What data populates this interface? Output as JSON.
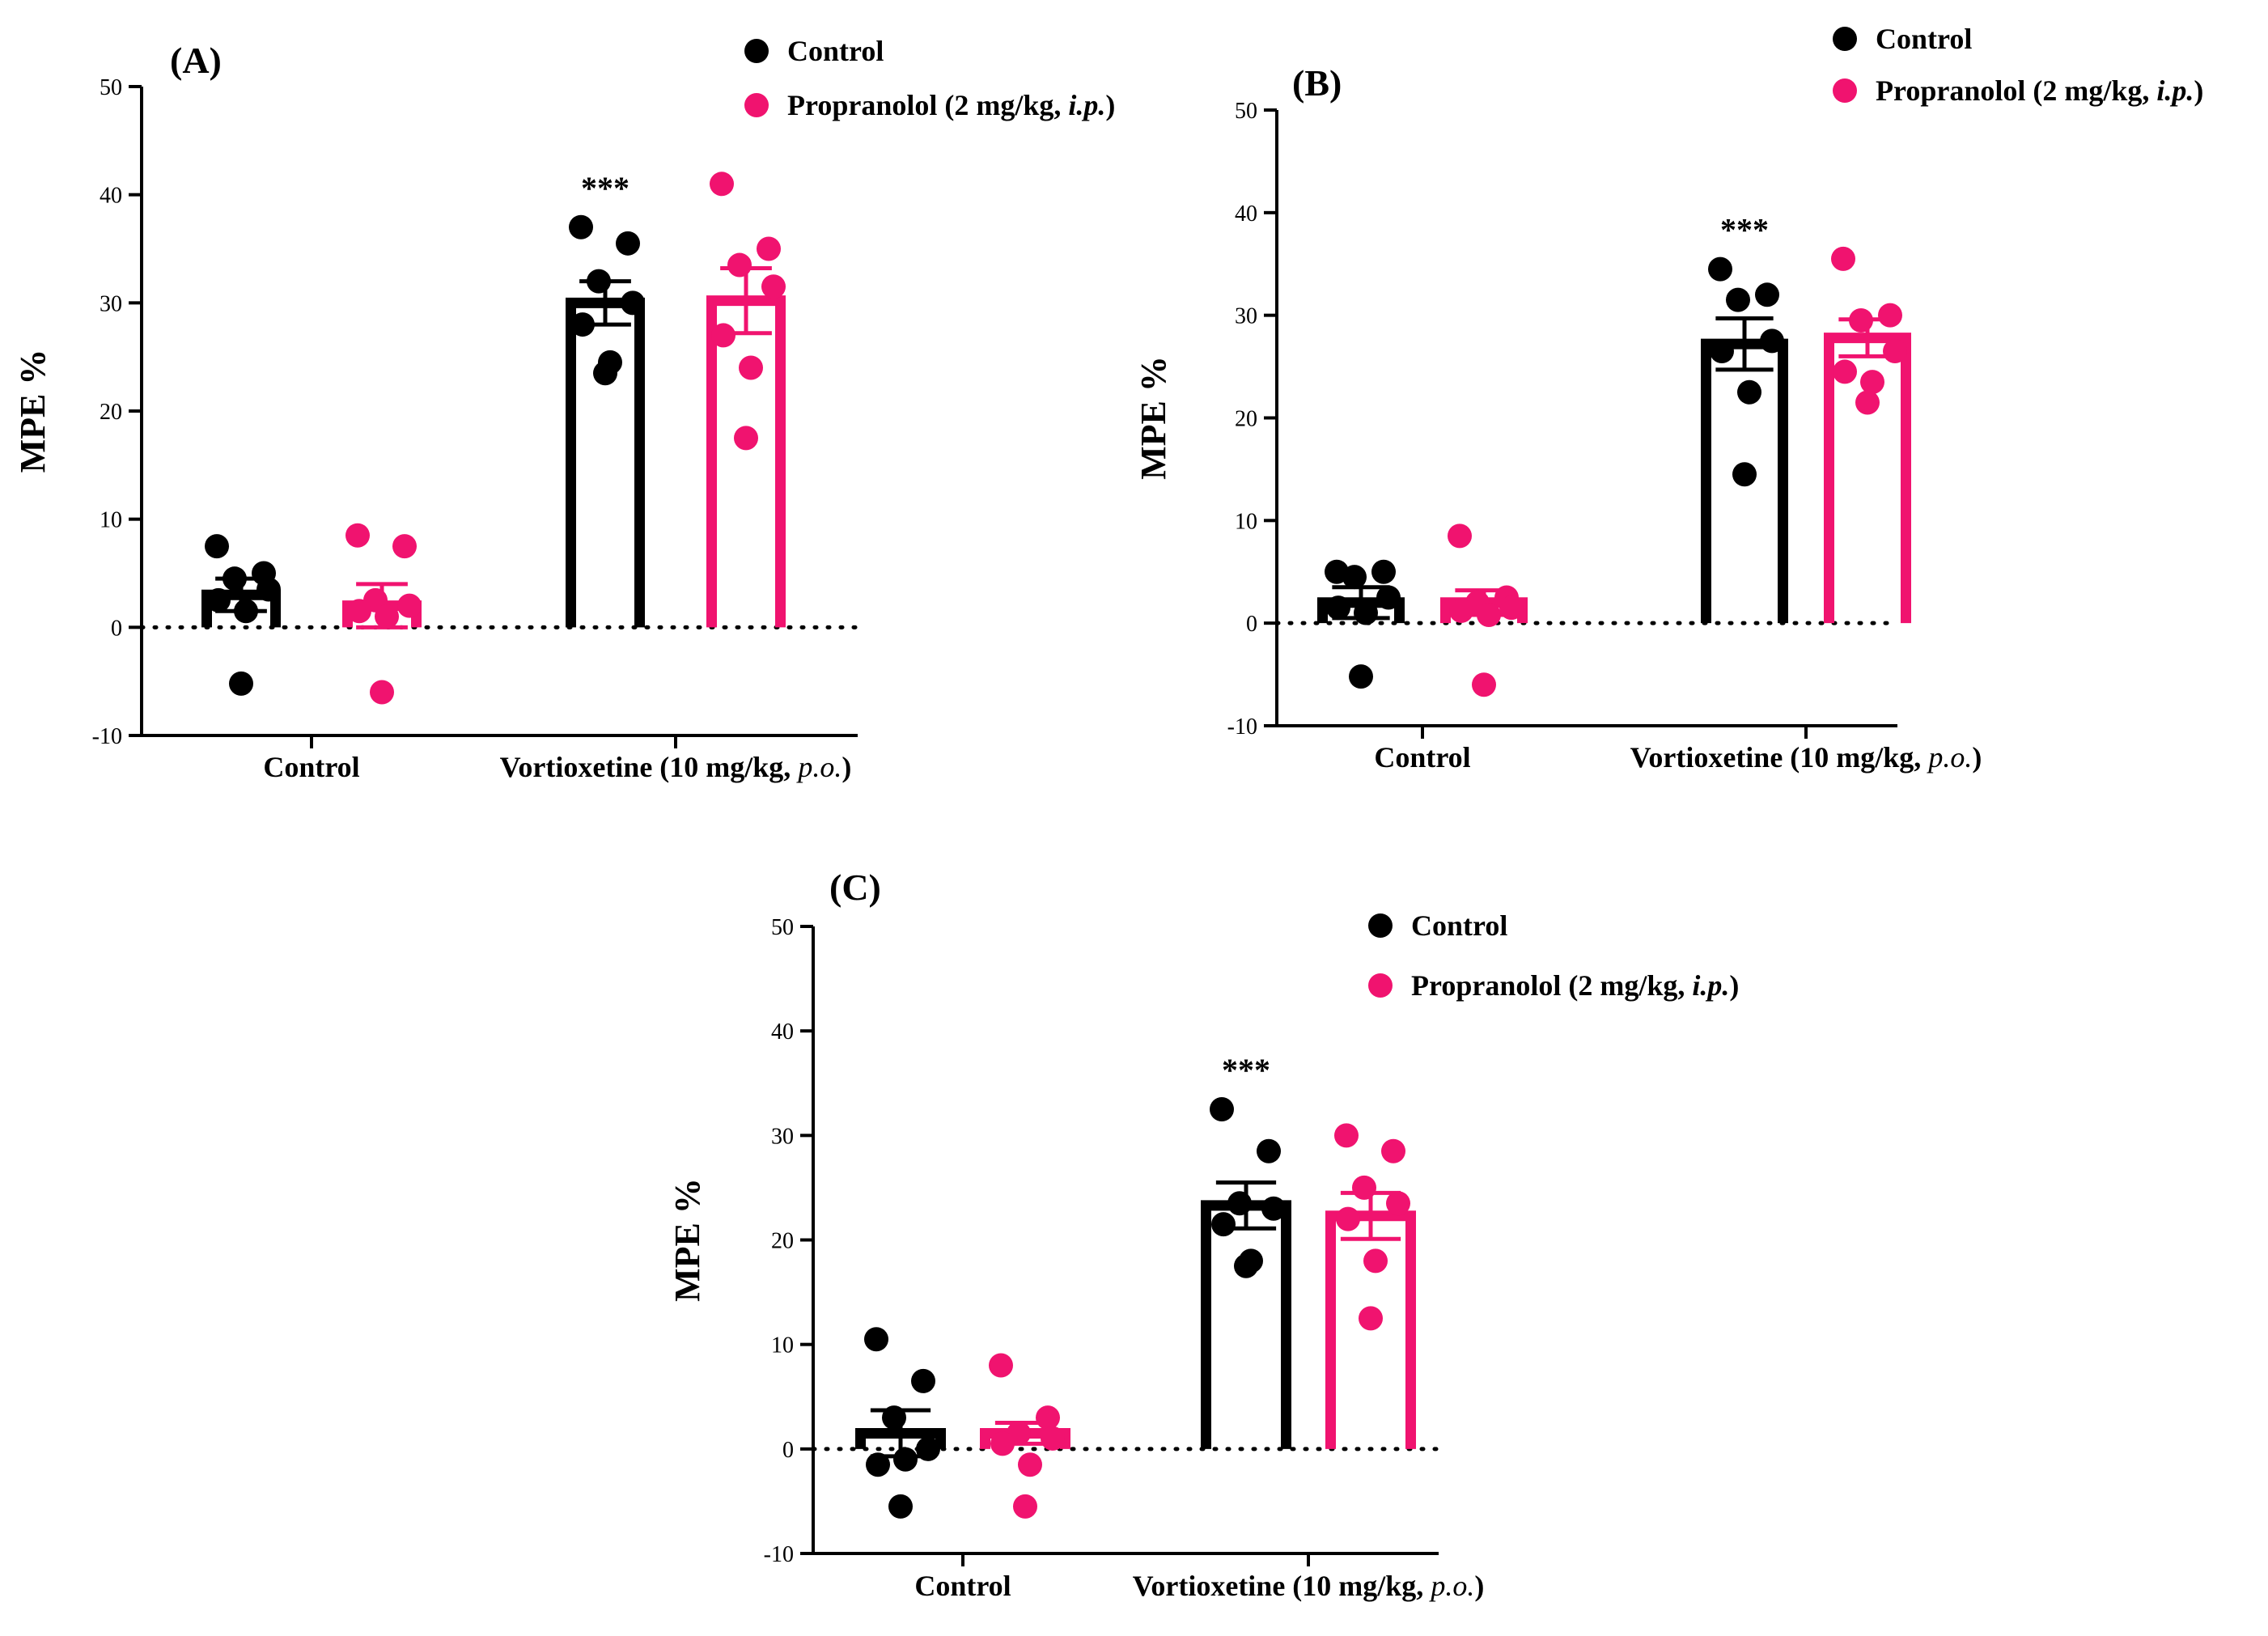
{
  "colors": {
    "control": "#000000",
    "propranolol": "#f0136f"
  },
  "legend": {
    "control": "Control",
    "propranolol_prefix": "Propranolol (2 mg/kg, ",
    "propranolol_route": "i.p.",
    "propranolol_suffix": ")"
  },
  "chart_data": [
    {
      "panel": "(A)",
      "type": "bar",
      "ylabel": "MPE %",
      "ylim": [
        -10,
        50
      ],
      "yticks": [
        -10,
        0,
        10,
        20,
        30,
        40,
        50
      ],
      "categories": [
        "Control",
        "Vortioxetine (10 mg/kg, p.o.)"
      ],
      "category_labels": [
        {
          "text": "Control",
          "italic": ""
        },
        {
          "text": "Vortioxetine (10 mg/kg, ",
          "italic": "p.o.",
          "suffix": ")"
        }
      ],
      "significance": [
        "",
        "***"
      ],
      "series": [
        {
          "name": "Control",
          "means": [
            3.0,
            30.0
          ],
          "sem": [
            1.5,
            2.0
          ],
          "points": [
            [
              7.5,
              5.0,
              4.5,
              3.5,
              2.5,
              1.5,
              -5.2
            ],
            [
              37.0,
              35.5,
              32.0,
              30.0,
              28.0,
              24.5,
              23.5
            ]
          ]
        },
        {
          "name": "Propranolol (2 mg/kg, i.p.)",
          "means": [
            2.0,
            30.2
          ],
          "sem": [
            2.0,
            3.0
          ],
          "points": [
            [
              8.5,
              7.5,
              2.5,
              2.0,
              1.5,
              1.0,
              -6.0
            ],
            [
              41.0,
              35.0,
              33.5,
              31.5,
              27.0,
              24.0,
              17.5
            ]
          ]
        }
      ]
    },
    {
      "panel": "(B)",
      "type": "bar",
      "ylabel": "MPE %",
      "ylim": [
        -10,
        50
      ],
      "yticks": [
        -10,
        0,
        10,
        20,
        30,
        40,
        50
      ],
      "categories": [
        "Control",
        "Vortioxetine (10 mg/kg, p.o.)"
      ],
      "category_labels": [
        {
          "text": "Control",
          "italic": ""
        },
        {
          "text": "Vortioxetine (10 mg/kg, ",
          "italic": "p.o.",
          "suffix": ")"
        }
      ],
      "significance": [
        "",
        "***"
      ],
      "series": [
        {
          "name": "Control",
          "means": [
            2.0,
            27.2
          ],
          "sem": [
            1.5,
            2.5
          ],
          "points": [
            [
              5.0,
              5.0,
              4.5,
              2.5,
              1.5,
              1.0,
              -5.2
            ],
            [
              34.5,
              32.0,
              31.5,
              27.5,
              26.5,
              22.5,
              14.5
            ]
          ]
        },
        {
          "name": "Propranolol (2 mg/kg, i.p.)",
          "means": [
            2.0,
            27.8
          ],
          "sem": [
            1.2,
            1.8
          ],
          "points": [
            [
              8.5,
              2.5,
              2.0,
              1.5,
              1.2,
              0.8,
              -6.0
            ],
            [
              35.5,
              30.0,
              29.5,
              26.5,
              24.5,
              23.5,
              21.5
            ]
          ]
        }
      ]
    },
    {
      "panel": "(C)",
      "type": "bar",
      "ylabel": "MPE %",
      "ylim": [
        -10,
        50
      ],
      "yticks": [
        -10,
        0,
        10,
        20,
        30,
        40,
        50
      ],
      "categories": [
        "Control",
        "Vortioxetine (10 mg/kg, p.o.)"
      ],
      "category_labels": [
        {
          "text": "Control",
          "italic": ""
        },
        {
          "text": "Vortioxetine (10 mg/kg, ",
          "italic": "p.o.",
          "suffix": ")"
        }
      ],
      "significance": [
        "",
        "***"
      ],
      "series": [
        {
          "name": "Control",
          "means": [
            1.5,
            23.3
          ],
          "sem": [
            2.2,
            2.2
          ],
          "points": [
            [
              10.5,
              6.5,
              3.0,
              0.0,
              -1.5,
              -1.0,
              -5.5
            ],
            [
              32.5,
              28.5,
              23.5,
              23.0,
              21.5,
              18.0,
              17.5
            ]
          ]
        },
        {
          "name": "Propranolol (2 mg/kg, i.p.)",
          "means": [
            1.5,
            22.3
          ],
          "sem": [
            1.0,
            2.2
          ],
          "points": [
            [
              8.0,
              3.0,
              1.5,
              1.0,
              0.5,
              -1.5,
              -5.5
            ],
            [
              30.0,
              28.5,
              25.0,
              23.5,
              22.0,
              18.0,
              12.5
            ]
          ]
        }
      ]
    }
  ]
}
